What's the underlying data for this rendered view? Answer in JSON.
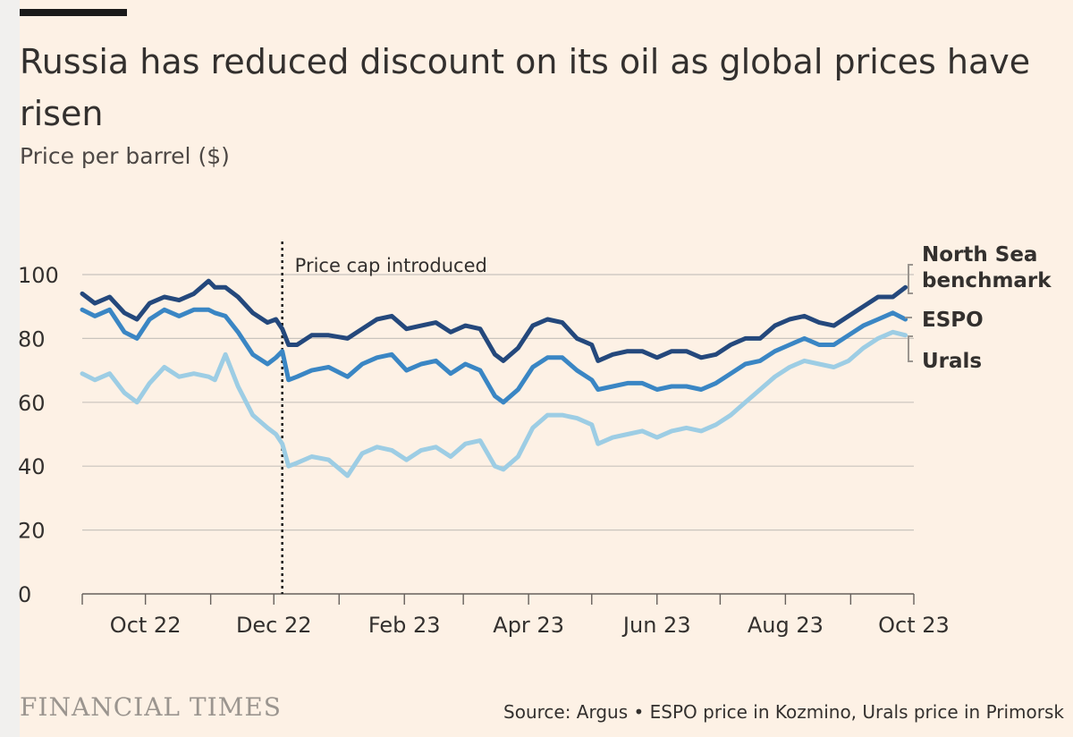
{
  "title": "Russia has reduced discount on its oil as global prices have risen",
  "subtitle": "Price per barrel ($)",
  "source": "Source: Argus • ESPO price in Kozmino, Urals price in Primorsk",
  "brand": "FINANCIAL TIMES",
  "colors": {
    "north_sea": "#24487c",
    "espo": "#3a86c4",
    "urals": "#9dcde4",
    "background": "#fdf1e5",
    "grid": "#c9c4bd",
    "text": "#33302e"
  },
  "chart_data": {
    "type": "line",
    "x_unit": "month",
    "x_range": [
      "2022-09-01",
      "2023-09-27"
    ],
    "ylim": [
      0,
      100
    ],
    "yticks": [
      0,
      20,
      40,
      60,
      80,
      100
    ],
    "xticks": [
      {
        "label": "Oct 22",
        "date": "2022-10-01"
      },
      {
        "label": "Dec 22",
        "date": "2022-12-01"
      },
      {
        "label": "Feb 23",
        "date": "2023-02-01"
      },
      {
        "label": "Apr 23",
        "date": "2023-04-01"
      },
      {
        "label": "Jun 23",
        "date": "2023-06-01"
      },
      {
        "label": "Aug 23",
        "date": "2023-08-01"
      },
      {
        "label": "Oct 23",
        "date": "2023-10-01"
      }
    ],
    "annotations": [
      {
        "label": "Price cap introduced",
        "date": "2022-12-05"
      }
    ],
    "series": [
      {
        "name": "North Sea benchmark",
        "key": "north_sea",
        "points": [
          [
            "2022-09-01",
            94
          ],
          [
            "2022-09-07",
            91
          ],
          [
            "2022-09-14",
            93
          ],
          [
            "2022-09-21",
            88
          ],
          [
            "2022-09-27",
            86
          ],
          [
            "2022-10-03",
            91
          ],
          [
            "2022-10-10",
            93
          ],
          [
            "2022-10-17",
            92
          ],
          [
            "2022-10-24",
            94
          ],
          [
            "2022-10-31",
            98
          ],
          [
            "2022-11-03",
            96
          ],
          [
            "2022-11-08",
            96
          ],
          [
            "2022-11-14",
            93
          ],
          [
            "2022-11-21",
            88
          ],
          [
            "2022-11-28",
            85
          ],
          [
            "2022-12-02",
            86
          ],
          [
            "2022-12-05",
            83
          ],
          [
            "2022-12-08",
            78
          ],
          [
            "2022-12-12",
            78
          ],
          [
            "2022-12-19",
            81
          ],
          [
            "2022-12-27",
            81
          ],
          [
            "2023-01-05",
            80
          ],
          [
            "2023-01-12",
            83
          ],
          [
            "2023-01-19",
            86
          ],
          [
            "2023-01-26",
            87
          ],
          [
            "2023-02-02",
            83
          ],
          [
            "2023-02-09",
            84
          ],
          [
            "2023-02-16",
            85
          ],
          [
            "2023-02-23",
            82
          ],
          [
            "2023-03-02",
            84
          ],
          [
            "2023-03-09",
            83
          ],
          [
            "2023-03-16",
            75
          ],
          [
            "2023-03-20",
            73
          ],
          [
            "2023-03-27",
            77
          ],
          [
            "2023-04-03",
            84
          ],
          [
            "2023-04-10",
            86
          ],
          [
            "2023-04-17",
            85
          ],
          [
            "2023-04-24",
            80
          ],
          [
            "2023-05-01",
            78
          ],
          [
            "2023-05-04",
            73
          ],
          [
            "2023-05-11",
            75
          ],
          [
            "2023-05-18",
            76
          ],
          [
            "2023-05-25",
            76
          ],
          [
            "2023-06-01",
            74
          ],
          [
            "2023-06-08",
            76
          ],
          [
            "2023-06-15",
            76
          ],
          [
            "2023-06-22",
            74
          ],
          [
            "2023-06-29",
            75
          ],
          [
            "2023-07-06",
            78
          ],
          [
            "2023-07-13",
            80
          ],
          [
            "2023-07-20",
            80
          ],
          [
            "2023-07-27",
            84
          ],
          [
            "2023-08-03",
            86
          ],
          [
            "2023-08-10",
            87
          ],
          [
            "2023-08-17",
            85
          ],
          [
            "2023-08-24",
            84
          ],
          [
            "2023-08-31",
            87
          ],
          [
            "2023-09-07",
            90
          ],
          [
            "2023-09-14",
            93
          ],
          [
            "2023-09-21",
            93
          ],
          [
            "2023-09-27",
            96
          ]
        ]
      },
      {
        "name": "ESPO",
        "key": "espo",
        "points": [
          [
            "2022-09-01",
            89
          ],
          [
            "2022-09-07",
            87
          ],
          [
            "2022-09-14",
            89
          ],
          [
            "2022-09-21",
            82
          ],
          [
            "2022-09-27",
            80
          ],
          [
            "2022-10-03",
            86
          ],
          [
            "2022-10-10",
            89
          ],
          [
            "2022-10-17",
            87
          ],
          [
            "2022-10-24",
            89
          ],
          [
            "2022-10-31",
            89
          ],
          [
            "2022-11-03",
            88
          ],
          [
            "2022-11-08",
            87
          ],
          [
            "2022-11-14",
            82
          ],
          [
            "2022-11-21",
            75
          ],
          [
            "2022-11-28",
            72
          ],
          [
            "2022-12-02",
            74
          ],
          [
            "2022-12-05",
            76
          ],
          [
            "2022-12-08",
            67
          ],
          [
            "2022-12-12",
            68
          ],
          [
            "2022-12-19",
            70
          ],
          [
            "2022-12-27",
            71
          ],
          [
            "2023-01-05",
            68
          ],
          [
            "2023-01-12",
            72
          ],
          [
            "2023-01-19",
            74
          ],
          [
            "2023-01-26",
            75
          ],
          [
            "2023-02-02",
            70
          ],
          [
            "2023-02-09",
            72
          ],
          [
            "2023-02-16",
            73
          ],
          [
            "2023-02-23",
            69
          ],
          [
            "2023-03-02",
            72
          ],
          [
            "2023-03-09",
            70
          ],
          [
            "2023-03-16",
            62
          ],
          [
            "2023-03-20",
            60
          ],
          [
            "2023-03-27",
            64
          ],
          [
            "2023-04-03",
            71
          ],
          [
            "2023-04-10",
            74
          ],
          [
            "2023-04-17",
            74
          ],
          [
            "2023-04-24",
            70
          ],
          [
            "2023-05-01",
            67
          ],
          [
            "2023-05-04",
            64
          ],
          [
            "2023-05-11",
            65
          ],
          [
            "2023-05-18",
            66
          ],
          [
            "2023-05-25",
            66
          ],
          [
            "2023-06-01",
            64
          ],
          [
            "2023-06-08",
            65
          ],
          [
            "2023-06-15",
            65
          ],
          [
            "2023-06-22",
            64
          ],
          [
            "2023-06-29",
            66
          ],
          [
            "2023-07-06",
            69
          ],
          [
            "2023-07-13",
            72
          ],
          [
            "2023-07-20",
            73
          ],
          [
            "2023-07-27",
            76
          ],
          [
            "2023-08-03",
            78
          ],
          [
            "2023-08-10",
            80
          ],
          [
            "2023-08-17",
            78
          ],
          [
            "2023-08-24",
            78
          ],
          [
            "2023-08-31",
            81
          ],
          [
            "2023-09-07",
            84
          ],
          [
            "2023-09-14",
            86
          ],
          [
            "2023-09-21",
            88
          ],
          [
            "2023-09-27",
            86
          ]
        ]
      },
      {
        "name": "Urals",
        "key": "urals",
        "points": [
          [
            "2022-09-01",
            69
          ],
          [
            "2022-09-07",
            67
          ],
          [
            "2022-09-14",
            69
          ],
          [
            "2022-09-21",
            63
          ],
          [
            "2022-09-27",
            60
          ],
          [
            "2022-10-03",
            66
          ],
          [
            "2022-10-10",
            71
          ],
          [
            "2022-10-17",
            68
          ],
          [
            "2022-10-24",
            69
          ],
          [
            "2022-10-31",
            68
          ],
          [
            "2022-11-03",
            67
          ],
          [
            "2022-11-08",
            75
          ],
          [
            "2022-11-14",
            65
          ],
          [
            "2022-11-21",
            56
          ],
          [
            "2022-11-28",
            52
          ],
          [
            "2022-12-02",
            50
          ],
          [
            "2022-12-05",
            47
          ],
          [
            "2022-12-08",
            40
          ],
          [
            "2022-12-12",
            41
          ],
          [
            "2022-12-19",
            43
          ],
          [
            "2022-12-27",
            42
          ],
          [
            "2023-01-05",
            37
          ],
          [
            "2023-01-12",
            44
          ],
          [
            "2023-01-19",
            46
          ],
          [
            "2023-01-26",
            45
          ],
          [
            "2023-02-02",
            42
          ],
          [
            "2023-02-09",
            45
          ],
          [
            "2023-02-16",
            46
          ],
          [
            "2023-02-23",
            43
          ],
          [
            "2023-03-02",
            47
          ],
          [
            "2023-03-09",
            48
          ],
          [
            "2023-03-16",
            40
          ],
          [
            "2023-03-20",
            39
          ],
          [
            "2023-03-27",
            43
          ],
          [
            "2023-04-03",
            52
          ],
          [
            "2023-04-10",
            56
          ],
          [
            "2023-04-17",
            56
          ],
          [
            "2023-04-24",
            55
          ],
          [
            "2023-05-01",
            53
          ],
          [
            "2023-05-04",
            47
          ],
          [
            "2023-05-11",
            49
          ],
          [
            "2023-05-18",
            50
          ],
          [
            "2023-05-25",
            51
          ],
          [
            "2023-06-01",
            49
          ],
          [
            "2023-06-08",
            51
          ],
          [
            "2023-06-15",
            52
          ],
          [
            "2023-06-22",
            51
          ],
          [
            "2023-06-29",
            53
          ],
          [
            "2023-07-06",
            56
          ],
          [
            "2023-07-13",
            60
          ],
          [
            "2023-07-20",
            64
          ],
          [
            "2023-07-27",
            68
          ],
          [
            "2023-08-03",
            71
          ],
          [
            "2023-08-10",
            73
          ],
          [
            "2023-08-17",
            72
          ],
          [
            "2023-08-24",
            71
          ],
          [
            "2023-08-31",
            73
          ],
          [
            "2023-09-07",
            77
          ],
          [
            "2023-09-14",
            80
          ],
          [
            "2023-09-21",
            82
          ],
          [
            "2023-09-27",
            81
          ]
        ]
      }
    ]
  }
}
